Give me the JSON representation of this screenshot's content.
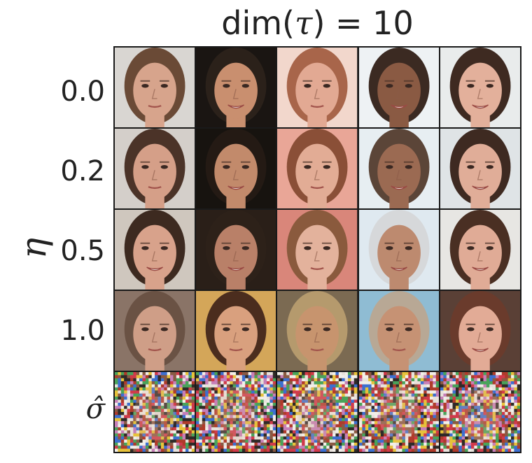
{
  "title": {
    "prefix": "dim(",
    "symbol": "τ",
    "suffix": ") = 10"
  },
  "y_axis_label": "η",
  "rows": [
    {
      "label": "0.0",
      "kind": "face"
    },
    {
      "label": "0.2",
      "kind": "face"
    },
    {
      "label": "0.5",
      "kind": "face"
    },
    {
      "label": "1.0",
      "kind": "face"
    },
    {
      "label": "σ̂",
      "kind": "noise"
    }
  ],
  "columns": 5,
  "cells": [
    [
      {
        "bg": "#d9d6d2",
        "hair": "#6a4a36",
        "skin": "#d7a48c",
        "smile": false
      },
      {
        "bg": "#1a1512",
        "hair": "#2b211a",
        "skin": "#c98f6f",
        "smile": true
      },
      {
        "bg": "#f2d7cc",
        "hair": "#a8654a",
        "skin": "#e2a993",
        "smile": false
      },
      {
        "bg": "#eef2f4",
        "hair": "#3b2a22",
        "skin": "#8a5a43",
        "smile": true
      },
      {
        "bg": "#e9ecec",
        "hair": "#3e2a21",
        "skin": "#e3b09b",
        "smile": true
      }
    ],
    [
      {
        "bg": "#d4cfca",
        "hair": "#4b3328",
        "skin": "#d59f88",
        "smile": false
      },
      {
        "bg": "#17130f",
        "hair": "#241a14",
        "skin": "#c28a6b",
        "smile": true
      },
      {
        "bg": "#e9a697",
        "hair": "#8a4f37",
        "skin": "#e2ac95",
        "smile": false
      },
      {
        "bg": "#e7eef2",
        "hair": "#5b4538",
        "skin": "#9b6a52",
        "smile": true
      },
      {
        "bg": "#dfe4e6",
        "hair": "#3e2a21",
        "skin": "#e0ad98",
        "smile": true
      }
    ],
    [
      {
        "bg": "#cfc7be",
        "hair": "#3d2a20",
        "skin": "#d8a28b",
        "smile": true
      },
      {
        "bg": "#2a1f18",
        "hair": "#2d2119",
        "skin": "#b98068",
        "smile": true
      },
      {
        "bg": "#d9867a",
        "hair": "#8a5a3d",
        "skin": "#e3b29c",
        "smile": false
      },
      {
        "bg": "#dfe9f0",
        "hair": "#d6d8da",
        "skin": "#bd8a6f",
        "smile": true
      },
      {
        "bg": "#e7e6e3",
        "hair": "#4a2f23",
        "skin": "#e0ab96",
        "smile": true
      }
    ],
    [
      {
        "bg": "#8a7467",
        "hair": "#6a5244",
        "skin": "#cf9e87",
        "smile": false
      },
      {
        "bg": "#d4a659",
        "hair": "#4b2d1e",
        "skin": "#d9a07e",
        "smile": false
      },
      {
        "bg": "#7b6a52",
        "hair": "#b59a6d",
        "skin": "#c7946e",
        "smile": false
      },
      {
        "bg": "#8fbcd3",
        "hair": "#b8a895",
        "skin": "#c69274",
        "smile": false
      },
      {
        "bg": "#5a4036",
        "hair": "#6a3b2c",
        "skin": "#e2ab96",
        "smile": true
      }
    ],
    [
      {
        "bg": "#7a6a5c"
      },
      {
        "bg": "#6d5c50"
      },
      {
        "bg": "#7c6c5e"
      },
      {
        "bg": "#a8a29b"
      },
      {
        "bg": "#75665a"
      }
    ]
  ]
}
